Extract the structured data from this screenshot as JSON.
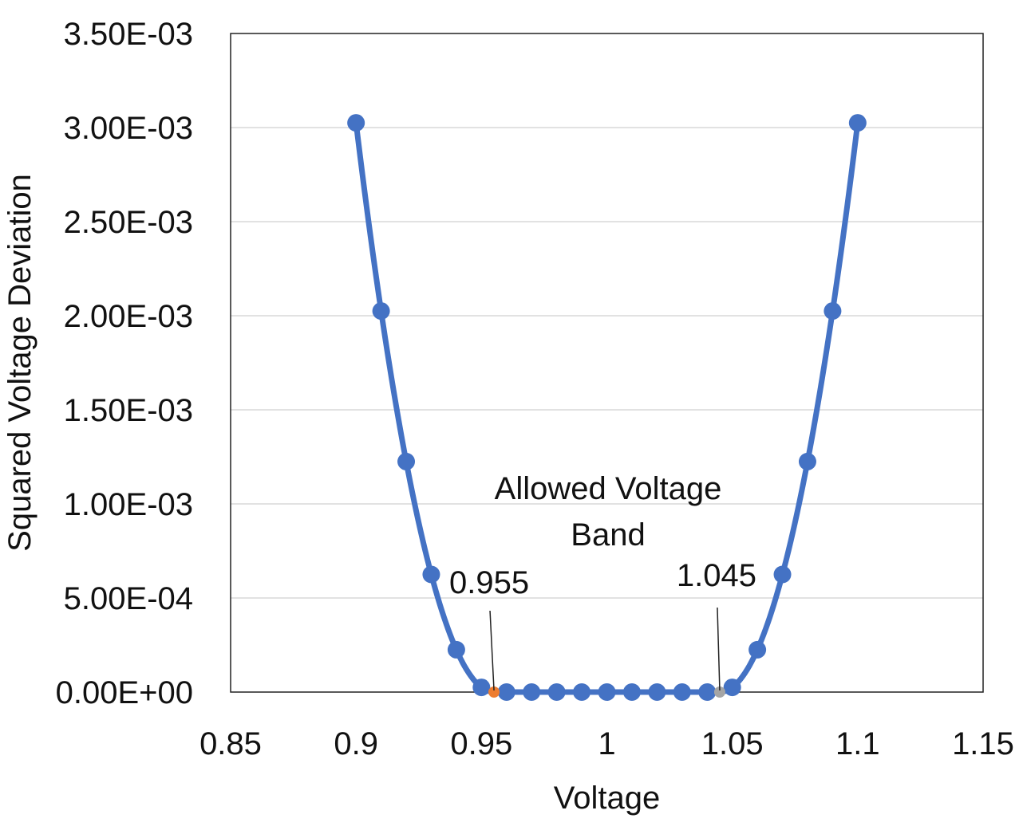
{
  "chart_data": {
    "type": "line",
    "title": "",
    "xlabel": "Voltage",
    "ylabel": "Squared Voltage Deviation",
    "xlim": [
      0.85,
      1.15
    ],
    "ylim": [
      0,
      0.0035
    ],
    "x_ticks": [
      "0.85",
      "0.9",
      "0.95",
      "1",
      "1.05",
      "1.1",
      "1.15"
    ],
    "y_ticks": [
      "0.00E+00",
      "5.00E-04",
      "1.00E-03",
      "1.50E-03",
      "2.00E-03",
      "2.50E-03",
      "3.00E-03",
      "3.50E-03"
    ],
    "x_tick_values": [
      0.85,
      0.9,
      0.95,
      1.0,
      1.05,
      1.1,
      1.15
    ],
    "y_tick_values": [
      0,
      0.0005,
      0.001,
      0.0015,
      0.002,
      0.0025,
      0.003,
      0.0035
    ],
    "grid": "horizontal",
    "legend": "none",
    "series": [
      {
        "color": "#4472C4",
        "x": [
          0.9,
          0.91,
          0.92,
          0.93,
          0.94,
          0.95,
          0.96,
          0.97,
          0.98,
          0.99,
          1.0,
          1.01,
          1.02,
          1.03,
          1.04,
          1.05,
          1.06,
          1.07,
          1.08,
          1.09,
          1.1
        ],
        "y": [
          0.003025,
          0.002025,
          0.001225,
          0.000625,
          0.000225,
          2.5e-05,
          0,
          0,
          0,
          0,
          0,
          0,
          0,
          0,
          0,
          2.5e-05,
          0.000225,
          0.000625,
          0.001225,
          0.002025,
          0.003025
        ]
      }
    ],
    "markers": [
      {
        "x": 0.955,
        "y": 0,
        "color": "#ED7D31"
      },
      {
        "x": 1.045,
        "y": 0,
        "color": "#A5A5A5"
      }
    ],
    "annotations": [
      {
        "text": "0.955",
        "x": 0.955
      },
      {
        "text": "1.045",
        "x": 1.045
      },
      {
        "text_lines": [
          "Allowed Voltage",
          "Band"
        ]
      }
    ]
  }
}
